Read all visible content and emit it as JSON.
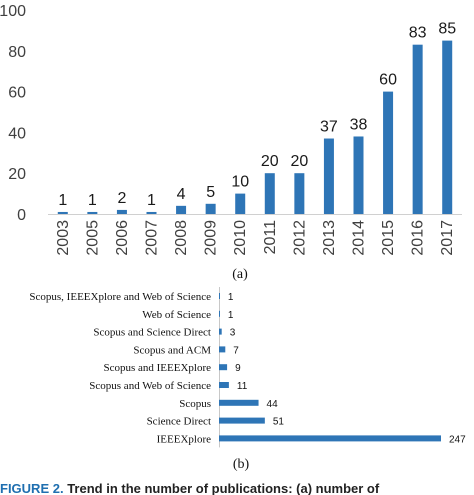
{
  "chart_data": [
    {
      "type": "bar",
      "subtitle": "(a)",
      "categories": [
        "2003",
        "2005",
        "2006",
        "2007",
        "2008",
        "2009",
        "2010",
        "2011",
        "2012",
        "2013",
        "2014",
        "2015",
        "2016",
        "2017"
      ],
      "values": [
        1,
        1,
        2,
        1,
        4,
        5,
        10,
        20,
        20,
        37,
        38,
        60,
        83,
        85
      ],
      "yticks": [
        0,
        20,
        40,
        60,
        80,
        100
      ],
      "ylim": [
        0,
        100
      ],
      "grid": false,
      "legend": "none",
      "color": "#2e75b6"
    },
    {
      "type": "bar",
      "orientation": "horizontal",
      "subtitle": "(b)",
      "categories": [
        "Scopus, IEEEXplore and Web of Science",
        "Web of Science",
        "Scopus and Science Direct",
        "Scopus and ACM",
        "Scopus and IEEEXplore",
        "Scopus and Web of Science",
        "Scopus",
        "Science Direct",
        "IEEEXplore"
      ],
      "values": [
        1,
        1,
        3,
        7,
        9,
        11,
        44,
        51,
        247
      ],
      "xlim": [
        0,
        247
      ],
      "grid": false,
      "legend": "none",
      "color": "#2e75b6"
    }
  ],
  "caption": {
    "label": "FIGURE 2.",
    "text": "Trend in the number of publications: (a) number of"
  }
}
